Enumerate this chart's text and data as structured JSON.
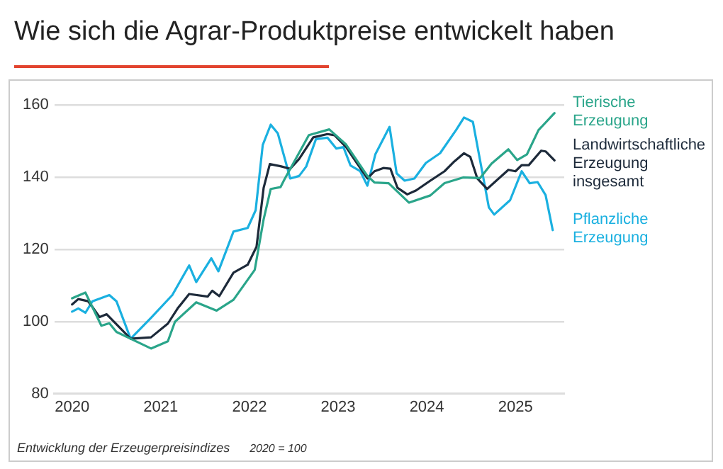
{
  "chart_data": {
    "type": "line",
    "title": "Wie sich die Agrar-Produktpreise entwickelt haben",
    "annotations": [
      "Entwicklung der Erzeugerpreisindizes",
      "2020 = 100"
    ],
    "xlim": [
      2019.8,
      2025.55
    ],
    "xticks": [
      2020,
      2021,
      2022,
      2023,
      2024,
      2025
    ],
    "ylim": [
      80,
      160
    ],
    "yticks": [
      80,
      100,
      120,
      140,
      160
    ],
    "grid": "y",
    "legend": "right",
    "marker": "none",
    "line_style": "solid",
    "series": [
      {
        "name": "Tierische Erzeugung",
        "color": "#2aa58a",
        "x": [
          2020.0,
          2020.15,
          2020.33,
          2020.42,
          2020.5,
          2020.66,
          2020.89,
          2021.08,
          2021.16,
          2021.4,
          2021.63,
          2021.82,
          2022.06,
          2022.16,
          2022.24,
          2022.35,
          2022.4,
          2022.67,
          2022.9,
          2023.09,
          2023.33,
          2023.41,
          2023.57,
          2023.8,
          2024.04,
          2024.2,
          2024.41,
          2024.6,
          2024.73,
          2024.92,
          2025.02,
          2025.13,
          2025.26,
          2025.44
        ],
        "values": [
          106.4,
          108,
          98.8,
          99.5,
          97.1,
          95.2,
          92.5,
          94.5,
          99.9,
          105.3,
          103,
          106,
          114.3,
          128.3,
          136.7,
          137.2,
          139.6,
          151.6,
          153.2,
          149,
          140.3,
          138.5,
          138.3,
          132.9,
          134.9,
          138.3,
          139.9,
          139.7,
          143.7,
          147.7,
          144.7,
          146.3,
          153,
          157.7
        ]
      },
      {
        "name": "Landwirtschaftliche Erzeugung insgesamt",
        "color": "#1d2a3a",
        "x": [
          2020.0,
          2020.07,
          2020.18,
          2020.23,
          2020.31,
          2020.39,
          2020.66,
          2020.89,
          2021.08,
          2021.19,
          2021.32,
          2021.53,
          2021.58,
          2021.66,
          2021.82,
          2021.98,
          2022.08,
          2022.16,
          2022.23,
          2022.35,
          2022.46,
          2022.56,
          2022.72,
          2022.88,
          2022.96,
          2023.09,
          2023.2,
          2023.33,
          2023.41,
          2023.51,
          2023.59,
          2023.67,
          2023.78,
          2023.88,
          2024.04,
          2024.2,
          2024.31,
          2024.42,
          2024.49,
          2024.57,
          2024.68,
          2024.92,
          2025.0,
          2025.07,
          2025.15,
          2025.29,
          2025.34,
          2025.44
        ],
        "values": [
          104.7,
          106.2,
          105.6,
          104,
          101.2,
          102,
          95.2,
          95.6,
          99.4,
          103.6,
          107.6,
          106.9,
          108.5,
          107,
          113.5,
          115.7,
          120.7,
          137,
          143.6,
          143,
          142.3,
          145,
          151,
          151.9,
          151.6,
          148.3,
          144.3,
          139.6,
          141.6,
          142.5,
          142.3,
          137,
          135.2,
          136.3,
          139,
          141.6,
          144.3,
          146.6,
          145.6,
          139.6,
          136.7,
          142,
          141.6,
          143.3,
          143.3,
          147.3,
          147.1,
          144.6
        ]
      },
      {
        "name": "Pflanzliche Erzeugung",
        "color": "#1ab0e0",
        "x": [
          2020.0,
          2020.07,
          2020.15,
          2020.23,
          2020.42,
          2020.5,
          2020.66,
          2020.89,
          2021.13,
          2021.32,
          2021.4,
          2021.57,
          2021.65,
          2021.82,
          2021.98,
          2022.07,
          2022.15,
          2022.24,
          2022.32,
          2022.46,
          2022.56,
          2022.64,
          2022.75,
          2022.88,
          2022.98,
          2023.06,
          2023.14,
          2023.25,
          2023.33,
          2023.42,
          2023.58,
          2023.66,
          2023.75,
          2023.86,
          2023.99,
          2024.15,
          2024.33,
          2024.42,
          2024.52,
          2024.7,
          2024.76,
          2024.94,
          2025.07,
          2025.16,
          2025.25,
          2025.34,
          2025.42
        ],
        "values": [
          102.7,
          103.6,
          102.4,
          105.6,
          107.3,
          105.6,
          95.2,
          101,
          107.3,
          115.5,
          110.9,
          117.5,
          113.9,
          124.9,
          125.9,
          130.8,
          148.9,
          154.5,
          152.1,
          139.6,
          140.3,
          142.9,
          150.5,
          150.9,
          147.9,
          148.3,
          143.2,
          141.6,
          137.6,
          146.3,
          153.9,
          141,
          139,
          139.6,
          143.9,
          146.6,
          153,
          156.5,
          155.3,
          131.6,
          129.6,
          133.6,
          141.6,
          138.3,
          138.6,
          135,
          125.3
        ]
      }
    ]
  }
}
